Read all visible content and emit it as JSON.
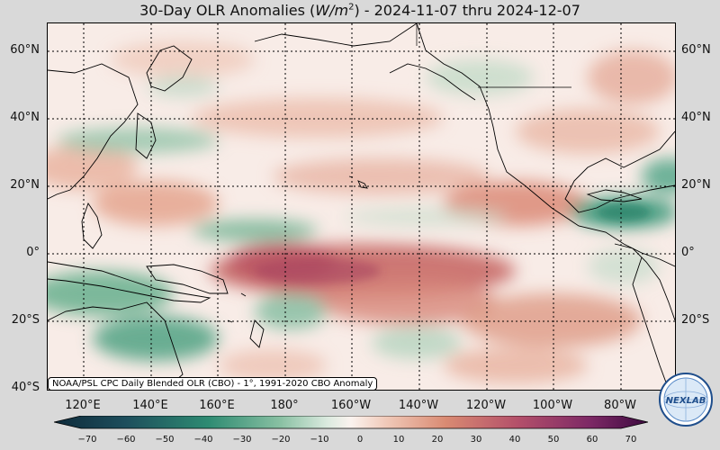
{
  "title_prefix": "30-Day OLR Anomalies (",
  "title_unit_base": "W/m",
  "title_unit_exp": "2",
  "title_suffix": ") - 2024-11-07 thru 2024-12-07",
  "credit": "NOAA/PSL CPC Daily Blended OLR (CBO) - 1°, 1991-2020 CBO Anomaly",
  "lat_labels": [
    "60°N",
    "40°N",
    "20°N",
    "0°",
    "20°S",
    "40°S"
  ],
  "lon_labels": [
    "120°E",
    "140°E",
    "160°E",
    "180°",
    "160°W",
    "140°W",
    "120°W",
    "100°W",
    "80°W"
  ],
  "colorbar_ticks": [
    "−70",
    "−60",
    "−50",
    "−40",
    "−30",
    "−20",
    "−10",
    "0",
    "10",
    "20",
    "30",
    "40",
    "50",
    "60",
    "70"
  ],
  "logo_text": "NEXLAB",
  "colors": {
    "negative_strong": "#0e2a3a",
    "negative_mid": "#2e8b72",
    "neutral": "#fbf3ef",
    "positive_mid": "#d98a72",
    "positive_strong": "#5a1050"
  }
}
